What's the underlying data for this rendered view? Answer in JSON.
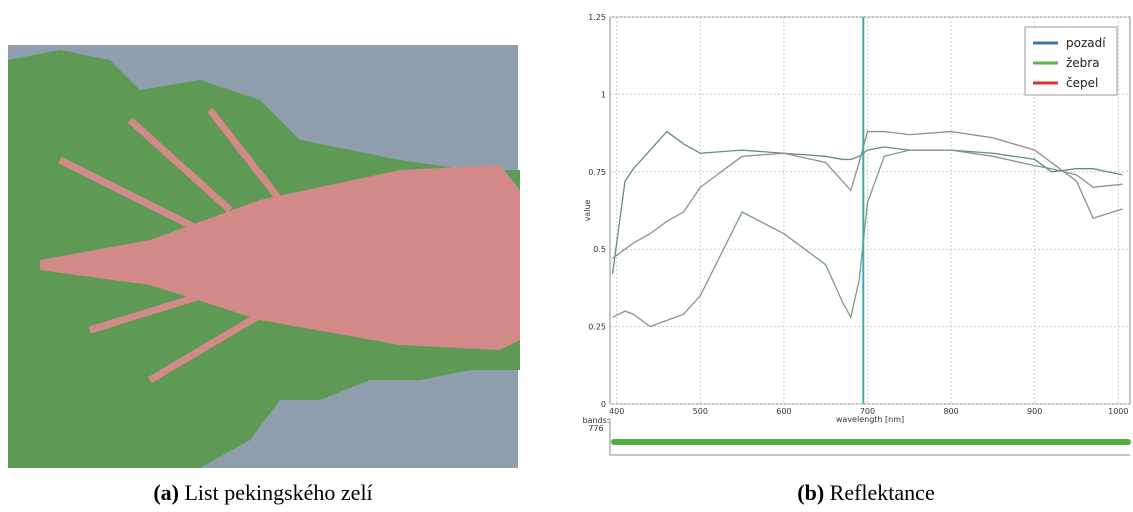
{
  "captions": [
    {
      "tag": "(a)",
      "text": "List pekingského zelí"
    },
    {
      "tag": "(b)",
      "text": "Reflektance"
    }
  ],
  "band_panel": {
    "label": "bands:",
    "value": 776
  },
  "chart_data": {
    "type": "line",
    "xlabel": "wavelength [nm]",
    "ylabel": "value",
    "x": [
      395,
      410,
      420,
      440,
      460,
      480,
      500,
      550,
      600,
      650,
      670,
      680,
      690,
      700,
      720,
      750,
      800,
      850,
      900,
      920,
      950,
      970,
      1005
    ],
    "series": [
      {
        "name": "pozadí",
        "color": "#2f78b7",
        "line_color": "#5f8f86",
        "values": [
          0.42,
          0.72,
          0.76,
          0.82,
          0.88,
          0.84,
          0.81,
          0.82,
          0.81,
          0.8,
          0.79,
          0.79,
          0.8,
          0.82,
          0.83,
          0.82,
          0.82,
          0.81,
          0.79,
          0.75,
          0.76,
          0.76,
          0.74
        ]
      },
      {
        "name": "žebra",
        "color": "#5fb14a",
        "line_color": "#9a8a8e",
        "values": [
          0.47,
          0.5,
          0.52,
          0.55,
          0.59,
          0.62,
          0.7,
          0.8,
          0.81,
          0.78,
          0.72,
          0.69,
          0.78,
          0.88,
          0.88,
          0.87,
          0.88,
          0.86,
          0.82,
          0.78,
          0.72,
          0.6,
          0.63
        ]
      },
      {
        "name": "čepel",
        "color": "#d8342c",
        "line_color": "#7f9a84",
        "values": [
          0.28,
          0.3,
          0.29,
          0.25,
          0.27,
          0.29,
          0.35,
          0.62,
          0.55,
          0.45,
          0.33,
          0.28,
          0.4,
          0.65,
          0.8,
          0.82,
          0.82,
          0.8,
          0.77,
          0.76,
          0.74,
          0.7,
          0.71
        ]
      }
    ],
    "vline": 695,
    "vline_color": "#3aa9b4",
    "xlim": [
      392,
      1014
    ],
    "xticks": [
      400,
      500,
      600,
      700,
      800,
      900,
      1000
    ],
    "ylim": [
      0,
      1.25
    ],
    "yticks": [
      0,
      0.25,
      0.5,
      0.75,
      1,
      1.25
    ],
    "grid": true,
    "legend": "upper right"
  }
}
